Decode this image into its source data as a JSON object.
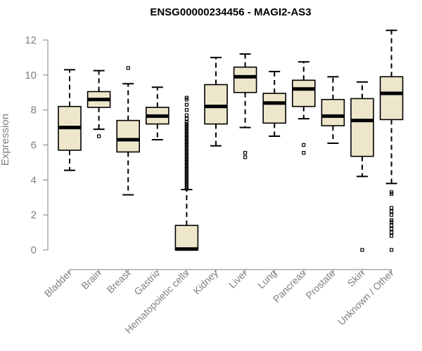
{
  "chart_data": {
    "type": "boxplot",
    "title": "ENSG00000234456 - MAGI2-AS3",
    "xlabel": "",
    "ylabel": "Expression",
    "ylim": [
      0,
      12
    ],
    "yticks": [
      0,
      2,
      4,
      6,
      8,
      10,
      12
    ],
    "colors": {
      "box_fill": "#ede6cb",
      "stroke": "#000000",
      "axis": "#808080",
      "text": "#808080"
    },
    "categories": [
      "Bladder",
      "Brain",
      "Breast",
      "Gastric",
      "Hematopoietic cells",
      "Kidney",
      "Liver",
      "Lung",
      "Pancreas",
      "Prostate",
      "Skin",
      "Unknown / Other"
    ],
    "boxes": [
      {
        "category": "Bladder",
        "whisker_low": 4.55,
        "q1": 5.7,
        "median": 7.0,
        "q3": 8.2,
        "whisker_high": 10.3,
        "outliers": []
      },
      {
        "category": "Brain",
        "whisker_low": 6.9,
        "q1": 8.15,
        "median": 8.6,
        "q3": 9.05,
        "whisker_high": 10.25,
        "outliers": [
          6.5
        ]
      },
      {
        "category": "Breast",
        "whisker_low": 3.15,
        "q1": 5.6,
        "median": 6.3,
        "q3": 7.4,
        "whisker_high": 9.5,
        "outliers": [
          10.4
        ]
      },
      {
        "category": "Gastric",
        "whisker_low": 6.3,
        "q1": 7.2,
        "median": 7.65,
        "q3": 8.15,
        "whisker_high": 9.3,
        "outliers": []
      },
      {
        "category": "Hematopoietic cells",
        "whisker_low": 0.0,
        "q1": 0.0,
        "median": 0.05,
        "q3": 1.4,
        "whisker_high": 3.45,
        "outliers": [
          3.5,
          3.6,
          3.7,
          3.8,
          3.9,
          4.0,
          4.1,
          4.2,
          4.3,
          4.4,
          4.5,
          4.6,
          4.7,
          4.8,
          4.9,
          5.0,
          5.1,
          5.2,
          5.3,
          5.4,
          5.5,
          5.6,
          5.7,
          5.8,
          5.9,
          6.0,
          6.1,
          6.2,
          6.3,
          6.4,
          6.5,
          6.6,
          6.7,
          6.8,
          6.9,
          7.0,
          7.1,
          7.2,
          7.3,
          7.5,
          7.7,
          8.0,
          8.3,
          8.6,
          8.7
        ]
      },
      {
        "category": "Kidney",
        "whisker_low": 5.95,
        "q1": 7.2,
        "median": 8.2,
        "q3": 9.45,
        "whisker_high": 11.0,
        "outliers": []
      },
      {
        "category": "Liver",
        "whisker_low": 7.0,
        "q1": 9.0,
        "median": 9.9,
        "q3": 10.45,
        "whisker_high": 11.2,
        "outliers": [
          5.55,
          5.3
        ]
      },
      {
        "category": "Lung",
        "whisker_low": 6.5,
        "q1": 7.25,
        "median": 8.4,
        "q3": 8.95,
        "whisker_high": 10.2,
        "outliers": []
      },
      {
        "category": "Pancreas",
        "whisker_low": 7.5,
        "q1": 8.2,
        "median": 9.2,
        "q3": 9.7,
        "whisker_high": 10.75,
        "outliers": [
          6.0,
          5.55
        ]
      },
      {
        "category": "Prostate",
        "whisker_low": 6.1,
        "q1": 7.1,
        "median": 7.65,
        "q3": 8.6,
        "whisker_high": 9.9,
        "outliers": []
      },
      {
        "category": "Skin",
        "whisker_low": 4.2,
        "q1": 5.35,
        "median": 7.4,
        "q3": 8.65,
        "whisker_high": 9.6,
        "outliers": [
          0.0
        ]
      },
      {
        "category": "Unknown / Other",
        "whisker_low": 3.8,
        "q1": 7.45,
        "median": 8.95,
        "q3": 9.9,
        "whisker_high": 12.55,
        "outliers": [
          3.3,
          3.2,
          2.4,
          2.2,
          2.0,
          1.7,
          1.6,
          1.4,
          1.2,
          1.0,
          0.8,
          0.0
        ]
      }
    ]
  }
}
